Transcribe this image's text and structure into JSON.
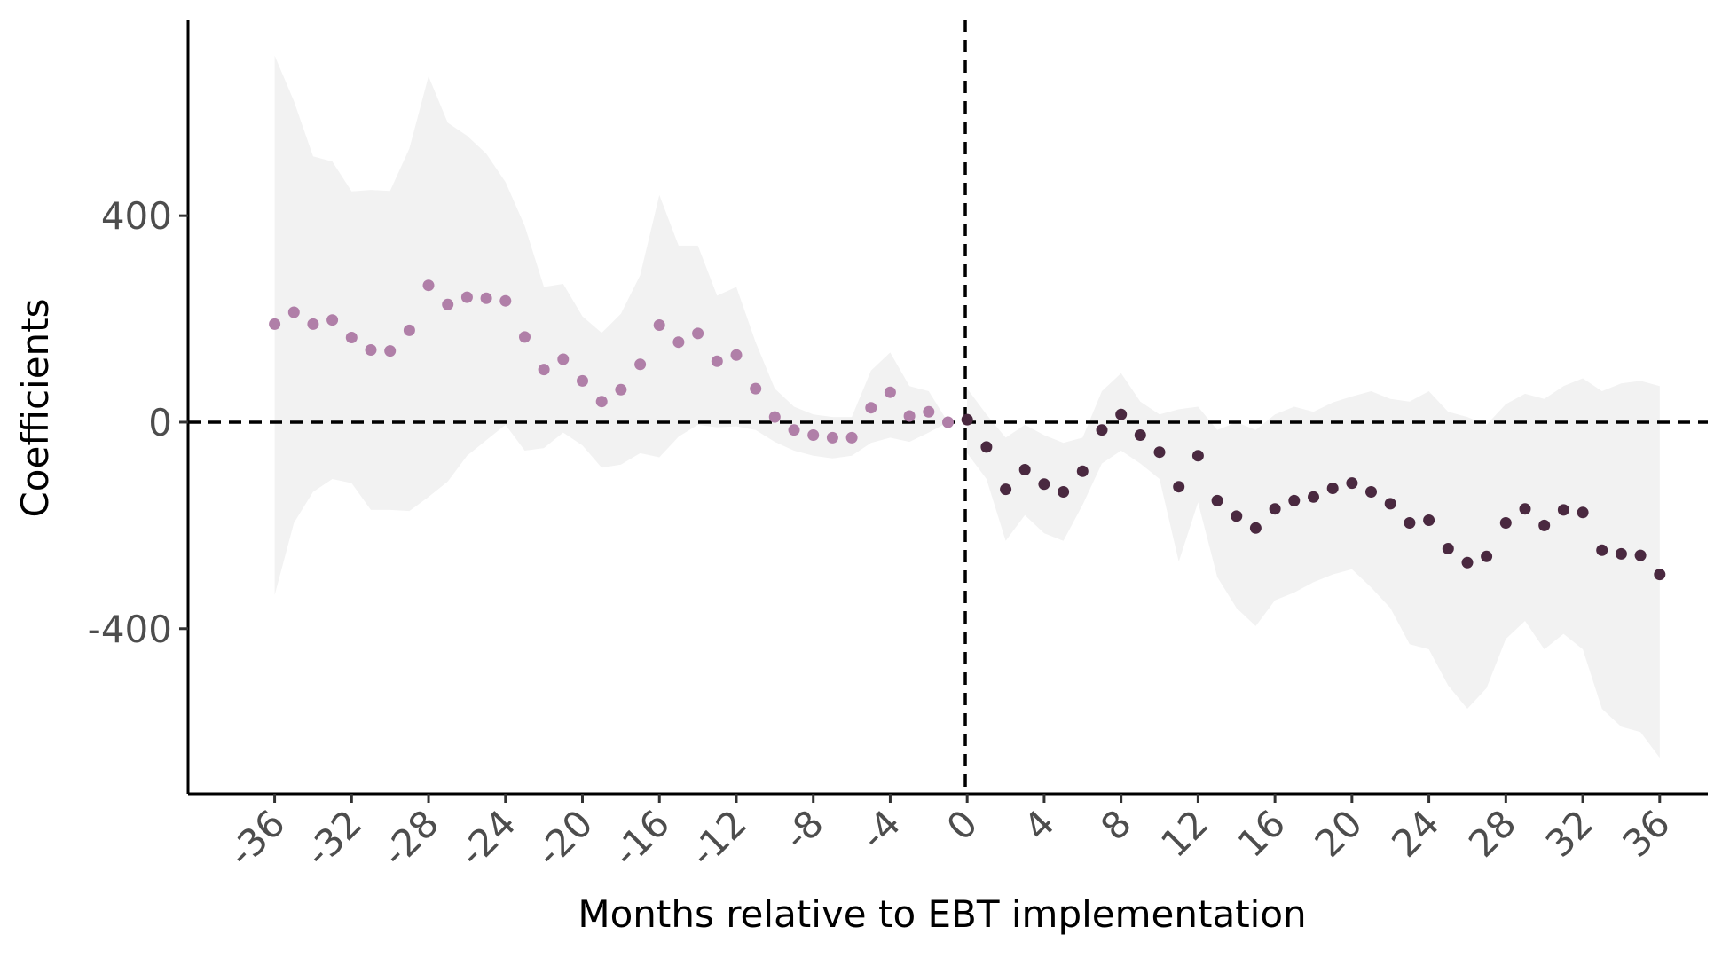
{
  "chart_data": {
    "type": "scatter",
    "xlabel": "Months relative to EBT implementation",
    "ylabel": "Coefficients",
    "xlim": [
      -40.5,
      38.5
    ],
    "ylim": [
      -720,
      780
    ],
    "x_ticks": [
      -36,
      -32,
      -28,
      -24,
      -20,
      -16,
      -12,
      -8,
      -4,
      0,
      4,
      8,
      12,
      16,
      20,
      24,
      28,
      32,
      36
    ],
    "y_ticks": [
      -400,
      0,
      400
    ],
    "reference_lines": {
      "horizontal": 0,
      "vertical": -0.1,
      "style": "dashed"
    },
    "grid": false,
    "legend": "none",
    "colors": {
      "pre": "#b07fa8",
      "post": "#4a2940",
      "band": "#f2f2f2",
      "axis": "#000000"
    },
    "series": [
      {
        "values": [
          {
            "x": -36,
            "y": 190,
            "lo": -335,
            "hi": 710
          },
          {
            "x": -35,
            "y": 213,
            "lo": -195,
            "hi": 622
          },
          {
            "x": -34,
            "y": 190,
            "lo": -135,
            "hi": 515
          },
          {
            "x": -33,
            "y": 198,
            "lo": -110,
            "hi": 505
          },
          {
            "x": -32,
            "y": 164,
            "lo": -118,
            "hi": 447
          },
          {
            "x": -31,
            "y": 140,
            "lo": -170,
            "hi": 450
          },
          {
            "x": -30,
            "y": 138,
            "lo": -170,
            "hi": 448
          },
          {
            "x": -29,
            "y": 178,
            "lo": -172,
            "hi": 530
          },
          {
            "x": -28,
            "y": 265,
            "lo": -145,
            "hi": 670
          },
          {
            "x": -27,
            "y": 228,
            "lo": -115,
            "hi": 580
          },
          {
            "x": -26,
            "y": 242,
            "lo": -65,
            "hi": 555
          },
          {
            "x": -25,
            "y": 240,
            "lo": -35,
            "hi": 520
          },
          {
            "x": -24,
            "y": 235,
            "lo": -5,
            "hi": 465
          },
          {
            "x": -23,
            "y": 165,
            "lo": -55,
            "hi": 380
          },
          {
            "x": -22,
            "y": 102,
            "lo": -50,
            "hi": 262
          },
          {
            "x": -21,
            "y": 122,
            "lo": -20,
            "hi": 268
          },
          {
            "x": -20,
            "y": 80,
            "lo": -45,
            "hi": 205
          },
          {
            "x": -19,
            "y": 40,
            "lo": -88,
            "hi": 173
          },
          {
            "x": -18,
            "y": 63,
            "lo": -82,
            "hi": 210
          },
          {
            "x": -17,
            "y": 112,
            "lo": -60,
            "hi": 285
          },
          {
            "x": -16,
            "y": 188,
            "lo": -68,
            "hi": 440
          },
          {
            "x": -15,
            "y": 155,
            "lo": -28,
            "hi": 342
          },
          {
            "x": -14,
            "y": 172,
            "lo": -5,
            "hi": 342
          },
          {
            "x": -13,
            "y": 118,
            "lo": -10,
            "hi": 245
          },
          {
            "x": -12,
            "y": 130,
            "lo": -8,
            "hi": 262
          },
          {
            "x": -11,
            "y": 65,
            "lo": -15,
            "hi": 155
          },
          {
            "x": -10,
            "y": 10,
            "lo": -38,
            "hi": 65
          },
          {
            "x": -9,
            "y": -15,
            "lo": -55,
            "hi": 30
          },
          {
            "x": -8,
            "y": -25,
            "lo": -65,
            "hi": 15
          },
          {
            "x": -7,
            "y": -30,
            "lo": -70,
            "hi": 10
          },
          {
            "x": -6,
            "y": -30,
            "lo": -65,
            "hi": 10
          },
          {
            "x": -5,
            "y": 28,
            "lo": -40,
            "hi": 100
          },
          {
            "x": -4,
            "y": 58,
            "lo": -30,
            "hi": 135
          },
          {
            "x": -3,
            "y": 12,
            "lo": -38,
            "hi": 70
          },
          {
            "x": -2,
            "y": 20,
            "lo": -20,
            "hi": 60
          },
          {
            "x": -1,
            "y": 0,
            "lo": 0,
            "hi": 0
          }
        ]
      },
      {
        "values": [
          {
            "x": 0,
            "y": 5,
            "lo": -60,
            "hi": 65
          },
          {
            "x": 1,
            "y": -48,
            "lo": -110,
            "hi": 15
          },
          {
            "x": 2,
            "y": -130,
            "lo": -230,
            "hi": -30
          },
          {
            "x": 3,
            "y": -92,
            "lo": -180,
            "hi": -5
          },
          {
            "x": 4,
            "y": -120,
            "lo": -215,
            "hi": -25
          },
          {
            "x": 5,
            "y": -135,
            "lo": -230,
            "hi": -40
          },
          {
            "x": 6,
            "y": -95,
            "lo": -160,
            "hi": -30
          },
          {
            "x": 7,
            "y": -15,
            "lo": -80,
            "hi": 60
          },
          {
            "x": 8,
            "y": 15,
            "lo": -55,
            "hi": 95
          },
          {
            "x": 9,
            "y": -25,
            "lo": -80,
            "hi": 40
          },
          {
            "x": 10,
            "y": -58,
            "lo": -110,
            "hi": 15
          },
          {
            "x": 11,
            "y": -125,
            "lo": -270,
            "hi": 25
          },
          {
            "x": 12,
            "y": -65,
            "lo": -155,
            "hi": 30
          },
          {
            "x": 13,
            "y": -152,
            "lo": -300,
            "hi": -15
          },
          {
            "x": 14,
            "y": -182,
            "lo": -360,
            "hi": 0
          },
          {
            "x": 15,
            "y": -205,
            "lo": -395,
            "hi": -15
          },
          {
            "x": 16,
            "y": -168,
            "lo": -345,
            "hi": 15
          },
          {
            "x": 17,
            "y": -152,
            "lo": -330,
            "hi": 30
          },
          {
            "x": 18,
            "y": -145,
            "lo": -310,
            "hi": 20
          },
          {
            "x": 19,
            "y": -128,
            "lo": -295,
            "hi": 38
          },
          {
            "x": 20,
            "y": -118,
            "lo": -285,
            "hi": 50
          },
          {
            "x": 21,
            "y": -135,
            "lo": -320,
            "hi": 60
          },
          {
            "x": 22,
            "y": -158,
            "lo": -360,
            "hi": 45
          },
          {
            "x": 23,
            "y": -195,
            "lo": -430,
            "hi": 40
          },
          {
            "x": 24,
            "y": -190,
            "lo": -440,
            "hi": 60
          },
          {
            "x": 25,
            "y": -245,
            "lo": -510,
            "hi": 20
          },
          {
            "x": 26,
            "y": -272,
            "lo": -555,
            "hi": 10
          },
          {
            "x": 27,
            "y": -260,
            "lo": -515,
            "hi": -5
          },
          {
            "x": 28,
            "y": -195,
            "lo": -420,
            "hi": 35
          },
          {
            "x": 29,
            "y": -168,
            "lo": -385,
            "hi": 55
          },
          {
            "x": 30,
            "y": -200,
            "lo": -440,
            "hi": 45
          },
          {
            "x": 31,
            "y": -170,
            "lo": -410,
            "hi": 70
          },
          {
            "x": 32,
            "y": -175,
            "lo": -440,
            "hi": 85
          },
          {
            "x": 33,
            "y": -248,
            "lo": -555,
            "hi": 60
          },
          {
            "x": 34,
            "y": -255,
            "lo": -590,
            "hi": 75
          },
          {
            "x": 35,
            "y": -258,
            "lo": -600,
            "hi": 80
          },
          {
            "x": 36,
            "y": -295,
            "lo": -650,
            "hi": 70
          }
        ]
      }
    ]
  }
}
